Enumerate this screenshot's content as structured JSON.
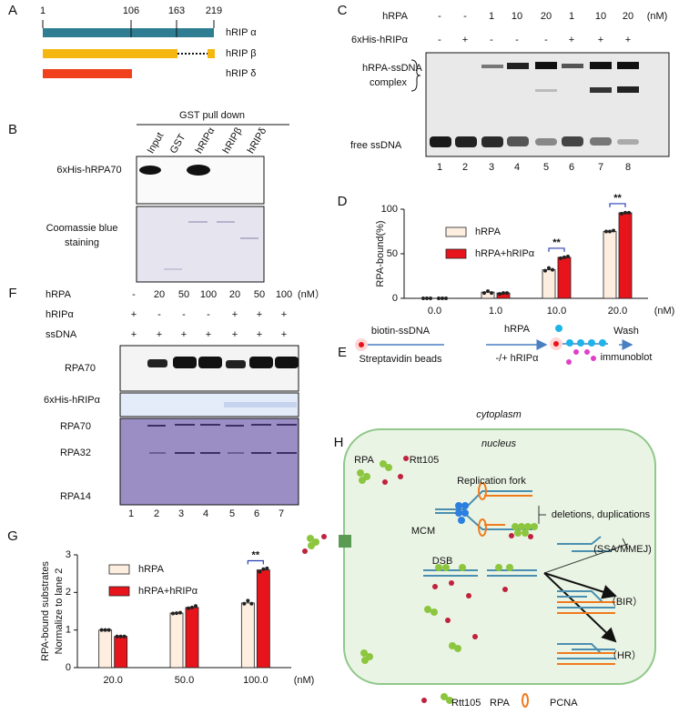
{
  "panels": {
    "A": {
      "label": "A",
      "ticks": [
        "1",
        "106",
        "163",
        "219"
      ],
      "isoforms": [
        "hRIP α",
        "hRIP β",
        "hRIP δ"
      ]
    },
    "B": {
      "label": "B",
      "header": "GST pull down",
      "lanes": [
        "Input",
        "GST",
        "hRIPα",
        "hRIPβ",
        "hRIPδ"
      ],
      "rows": [
        "6xHis-hRPA70",
        "Coomassie blue",
        "staining"
      ]
    },
    "C": {
      "label": "C",
      "rows": [
        {
          "name": "hRPA",
          "values": [
            "-",
            "-",
            "1",
            "10",
            "20",
            "1",
            "10",
            "20"
          ],
          "unit": "(nM)"
        },
        {
          "name": "6xHis-hRIPα",
          "values": [
            "-",
            "+",
            "-",
            "-",
            "-",
            "+",
            "+",
            "+"
          ]
        }
      ],
      "bands": [
        "hRPA-ssDNA",
        "complex",
        "free ssDNA"
      ],
      "lanes": [
        "1",
        "2",
        "3",
        "4",
        "5",
        "6",
        "7",
        "8"
      ]
    },
    "D": {
      "label": "D"
    },
    "E": {
      "label": "E",
      "texts": [
        "biotin-ssDNA",
        "Streptavidin beads",
        "hRPA",
        "-/+ hRIPα",
        "Wash",
        "immunoblot"
      ]
    },
    "F": {
      "label": "F",
      "rows": [
        {
          "name": "hRPA",
          "values": [
            "-",
            "20",
            "50",
            "100",
            "20",
            "50",
            "100"
          ],
          "unit": "(nM）"
        },
        {
          "name": "hRIPα",
          "values": [
            "+",
            "-",
            "-",
            "-",
            "+",
            "+",
            "+"
          ]
        },
        {
          "name": "ssDNA",
          "values": [
            "+",
            "+",
            "+",
            "+",
            "+",
            "+",
            "+"
          ]
        }
      ],
      "blots": [
        "RPA70",
        "6xHis-hRIPα",
        "RPA70",
        "RPA32",
        "RPA14"
      ],
      "lanes": [
        "1",
        "2",
        "3",
        "4",
        "5",
        "6",
        "7"
      ]
    },
    "G": {
      "label": "G"
    },
    "H": {
      "label": "H",
      "cytoplasm": "cytoplasm",
      "nucleus": "nucleus",
      "texts": [
        "RPA",
        "Rtt105",
        "Replication fork",
        "deletions, duplications",
        "MCM",
        "DSB",
        "(SSA/MMEJ)",
        "（BIR）",
        "（HR）"
      ],
      "legend": [
        "Rtt105",
        "RPA",
        "PCNA"
      ]
    }
  },
  "chart_data": [
    {
      "type": "bar",
      "ylabel": "RPA-bound(%)",
      "xlabel": "(nM)",
      "categories": [
        "0.0",
        "1.0",
        "10.0",
        "20.0"
      ],
      "ylim": [
        0,
        100
      ],
      "yticks": [
        0,
        50,
        100
      ],
      "series": [
        {
          "name": "hRPA",
          "color": "#fdeee0",
          "values": [
            0,
            7,
            32,
            75
          ],
          "points": [
            [
              0,
              0,
              0
            ],
            [
              6,
              8,
              6
            ],
            [
              31,
              34,
              32
            ],
            [
              75,
              75,
              76
            ]
          ]
        },
        {
          "name": "hRPA+hRIPα",
          "color": "#e8141c",
          "values": [
            0,
            6,
            46,
            96
          ],
          "points": [
            [
              0,
              0,
              0
            ],
            [
              5,
              6,
              6
            ],
            [
              45,
              46,
              47
            ],
            [
              95,
              96,
              96
            ]
          ]
        }
      ],
      "annotations": [
        {
          "text": "**",
          "x": "10.0"
        },
        {
          "text": "**",
          "x": "20.0"
        }
      ]
    },
    {
      "type": "bar",
      "ylabel": [
        "RPA-bound substrates",
        "Normalize to lane 2"
      ],
      "xlabel": "(nM)",
      "categories": [
        "20.0",
        "50.0",
        "100.0"
      ],
      "ylim": [
        0,
        3
      ],
      "yticks": [
        0,
        1,
        2,
        3
      ],
      "series": [
        {
          "name": "hRPA",
          "color": "#fdeee0",
          "values": [
            1.0,
            1.45,
            1.72
          ],
          "points": [
            [
              1,
              1,
              1
            ],
            [
              1.44,
              1.45,
              1.46
            ],
            [
              1.7,
              1.78,
              1.7
            ]
          ]
        },
        {
          "name": "hRPA+hRIPα",
          "color": "#e8141c",
          "values": [
            0.83,
            1.6,
            2.6
          ],
          "points": [
            [
              0.83,
              0.83,
              0.83
            ],
            [
              1.58,
              1.6,
              1.64
            ],
            [
              2.55,
              2.62,
              2.64
            ]
          ]
        }
      ],
      "annotations": [
        {
          "text": "**",
          "x": "100.0"
        }
      ]
    }
  ]
}
